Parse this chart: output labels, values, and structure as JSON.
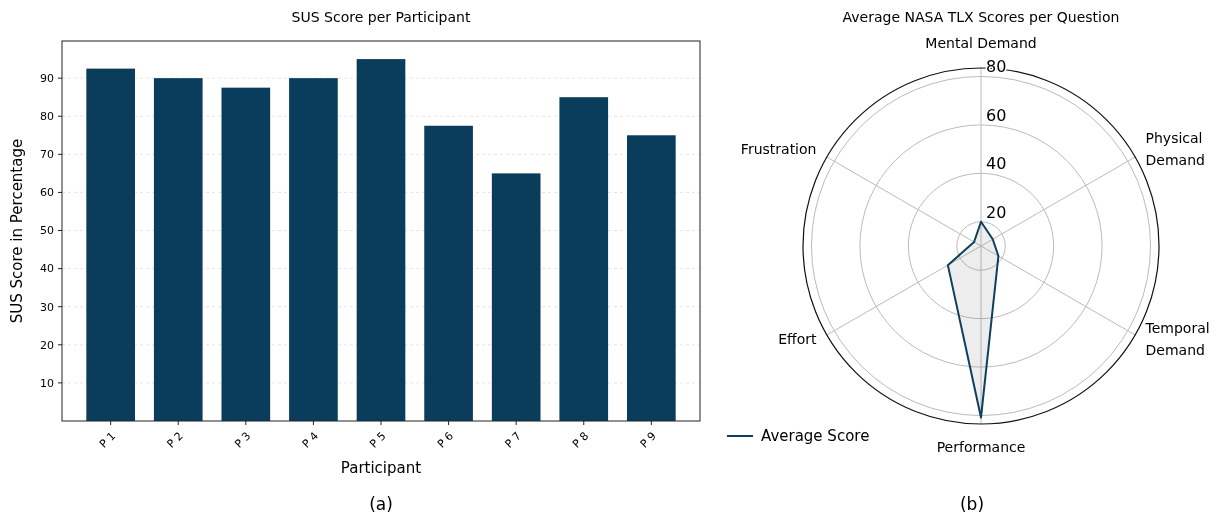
{
  "chart_data": [
    {
      "type": "bar",
      "title": "SUS Score per Participant",
      "xlabel": "Participant",
      "ylabel": "SUS Score in Percentage",
      "categories": [
        "P 1",
        "P 2",
        "P 3",
        "P 4",
        "P 5",
        "P 6",
        "P 7",
        "P 8",
        "P 9"
      ],
      "values": [
        92.5,
        90,
        87.5,
        90,
        95,
        77.5,
        65,
        85,
        75
      ],
      "color": "#0a3d5c",
      "ylim": [
        0,
        99.75
      ],
      "yticks": [
        10,
        20,
        30,
        40,
        50,
        60,
        70,
        80,
        90
      ],
      "grid": "y",
      "annotations": [
        "(a)"
      ]
    },
    {
      "type": "radar",
      "title": "Average NASA TLX Scores per Question",
      "categories": [
        "Mental Demand",
        "Physical\nDemand",
        "Temporal\nDemand",
        "Performance",
        "Effort",
        "Frustration"
      ],
      "series": [
        {
          "name": "Average Score",
          "color": "#0f3f60",
          "values": [
            20,
            15.6,
            18.3,
            80.8,
            25.8,
            13.3
          ]
        }
      ],
      "ylim": [
        10,
        83.5
      ],
      "yticks": [
        20,
        40,
        60,
        80
      ],
      "grid": true,
      "legend": "bottom left",
      "annotations": [
        "(b)"
      ]
    }
  ]
}
